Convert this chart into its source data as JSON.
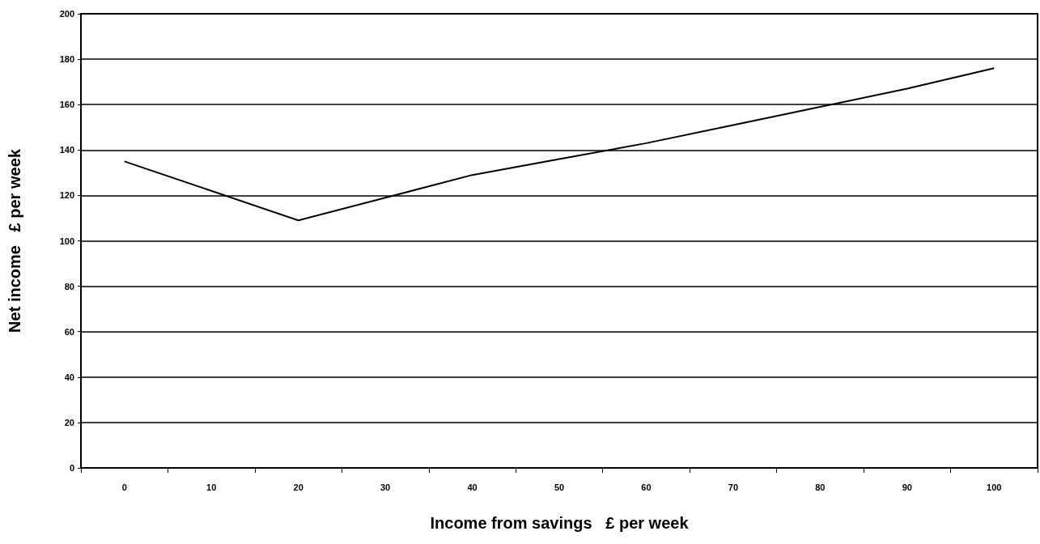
{
  "chart_data": {
    "type": "line",
    "xlabel": "Income from savings   £ per week",
    "ylabel": "Net income   £ per week",
    "categories": [
      "0",
      "10",
      "20",
      "30",
      "40",
      "50",
      "60",
      "70",
      "80",
      "90",
      "100"
    ],
    "series": [
      {
        "color": "#000000",
        "values": [
          135,
          122,
          109,
          119,
          129,
          136,
          143,
          151,
          159,
          167,
          176
        ]
      }
    ],
    "ylim": [
      0,
      200
    ],
    "yticks": [
      0,
      20,
      40,
      60,
      80,
      100,
      120,
      140,
      160,
      180,
      200
    ],
    "grid": "y",
    "marker": "none",
    "line_style": "solid"
  }
}
